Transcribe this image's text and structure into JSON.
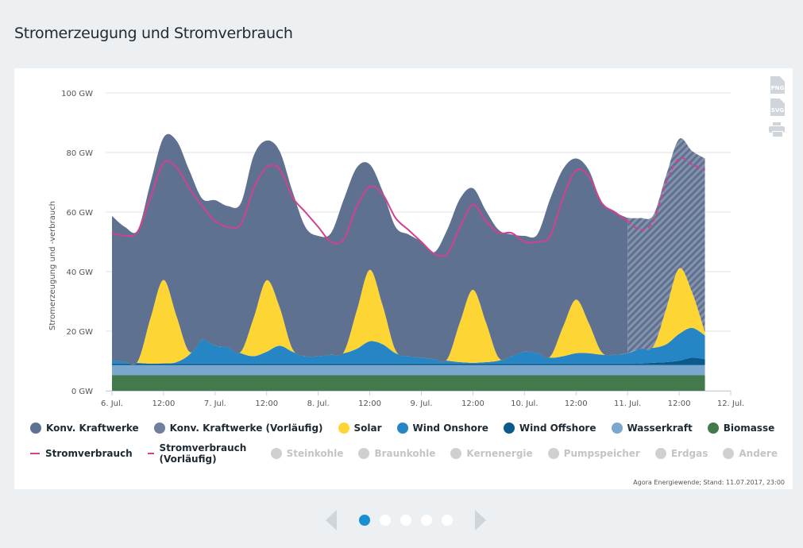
{
  "page_title": "Stromerzeugung und Stromverbrauch",
  "export": {
    "png": "PNG",
    "svg": "SVG",
    "print_icon": "printer-icon"
  },
  "footer": "Agora Energiewende; Stand: 11.07.2017, 23:00",
  "pagination": {
    "pages": 5,
    "active": 1,
    "active_color": "#1a8fd0"
  },
  "chart_data": {
    "type": "area",
    "stacked": true,
    "ylabel": "Stromerzeugung und -verbrauch",
    "ylim": [
      0,
      100
    ],
    "yticks": [
      "0 GW",
      "20 GW",
      "40 GW",
      "60 GW",
      "80 GW",
      "100 GW"
    ],
    "ytick_values": [
      0,
      20,
      40,
      60,
      80,
      100
    ],
    "xlim": [
      "2017-07-06T00:00",
      "2017-07-12T00:00"
    ],
    "xticks": [
      "6. Jul.",
      "12:00",
      "7. Jul.",
      "12:00",
      "8. Jul.",
      "12:00",
      "9. Jul.",
      "12:00",
      "10. Jul.",
      "12:00",
      "11. Jul.",
      "12:00",
      "12. Jul."
    ],
    "grid": true,
    "legend_position": "bottom",
    "preliminary_from": "2017-07-11T00:00",
    "x": [
      "2017-07-06T00:00",
      "2017-07-06T03:00",
      "2017-07-06T06:00",
      "2017-07-06T09:00",
      "2017-07-06T12:00",
      "2017-07-06T15:00",
      "2017-07-06T18:00",
      "2017-07-06T21:00",
      "2017-07-07T00:00",
      "2017-07-07T03:00",
      "2017-07-07T06:00",
      "2017-07-07T09:00",
      "2017-07-07T12:00",
      "2017-07-07T15:00",
      "2017-07-07T18:00",
      "2017-07-07T21:00",
      "2017-07-08T00:00",
      "2017-07-08T03:00",
      "2017-07-08T06:00",
      "2017-07-08T09:00",
      "2017-07-08T12:00",
      "2017-07-08T15:00",
      "2017-07-08T18:00",
      "2017-07-08T21:00",
      "2017-07-09T00:00",
      "2017-07-09T03:00",
      "2017-07-09T06:00",
      "2017-07-09T09:00",
      "2017-07-09T12:00",
      "2017-07-09T15:00",
      "2017-07-09T18:00",
      "2017-07-09T21:00",
      "2017-07-10T00:00",
      "2017-07-10T03:00",
      "2017-07-10T06:00",
      "2017-07-10T09:00",
      "2017-07-10T12:00",
      "2017-07-10T15:00",
      "2017-07-10T18:00",
      "2017-07-10T21:00",
      "2017-07-11T00:00",
      "2017-07-11T03:00",
      "2017-07-11T06:00",
      "2017-07-11T09:00",
      "2017-07-11T12:00",
      "2017-07-11T15:00",
      "2017-07-11T18:00"
    ],
    "series": [
      {
        "name": "Biomasse",
        "color": "#437a4c",
        "values": [
          5.2,
          5.2,
          5.2,
          5.2,
          5.2,
          5.2,
          5.2,
          5.2,
          5.2,
          5.2,
          5.2,
          5.2,
          5.2,
          5.2,
          5.2,
          5.2,
          5.2,
          5.2,
          5.2,
          5.2,
          5.2,
          5.2,
          5.2,
          5.2,
          5.2,
          5.2,
          5.2,
          5.2,
          5.2,
          5.2,
          5.2,
          5.2,
          5.2,
          5.2,
          5.2,
          5.2,
          5.2,
          5.2,
          5.2,
          5.2,
          5.2,
          5.2,
          5.2,
          5.2,
          5.2,
          5.2,
          5.2
        ]
      },
      {
        "name": "Wasserkraft",
        "color": "#7aa7cd",
        "values": [
          3.4,
          3.4,
          3.4,
          3.4,
          3.4,
          3.4,
          3.4,
          3.4,
          3.4,
          3.4,
          3.4,
          3.4,
          3.4,
          3.4,
          3.4,
          3.4,
          3.4,
          3.4,
          3.4,
          3.4,
          3.4,
          3.4,
          3.4,
          3.4,
          3.4,
          3.4,
          3.4,
          3.4,
          3.4,
          3.4,
          3.4,
          3.4,
          3.4,
          3.4,
          3.4,
          3.4,
          3.4,
          3.4,
          3.4,
          3.4,
          3.4,
          3.4,
          3.4,
          3.4,
          3.4,
          3.4,
          3.4
        ]
      },
      {
        "name": "Wind Offshore",
        "color": "#0a5a8c",
        "values": [
          0.5,
          0.5,
          0.5,
          0.5,
          0.5,
          0.5,
          0.5,
          0.5,
          0.5,
          0.5,
          0.5,
          0.5,
          0.5,
          0.5,
          0.5,
          0.5,
          0.5,
          0.5,
          0.5,
          0.5,
          0.5,
          0.5,
          0.5,
          0.5,
          0.5,
          0.5,
          0.5,
          0.5,
          0.5,
          0.5,
          0.5,
          0.5,
          0.5,
          0.5,
          0.5,
          0.5,
          0.5,
          0.5,
          0.5,
          0.5,
          0.5,
          0.5,
          0.8,
          1,
          1.5,
          2.5,
          2
        ]
      },
      {
        "name": "Wind Onshore",
        "color": "#2585c5",
        "values": [
          1.2,
          0.6,
          0.3,
          0,
          0.1,
          0.5,
          3,
          8,
          6,
          5.5,
          3.5,
          2.5,
          4,
          6,
          4,
          2.5,
          2.5,
          3,
          3.5,
          5,
          7.5,
          6.5,
          3.5,
          2.5,
          2,
          1.5,
          1,
          0.5,
          0.3,
          0.5,
          1,
          2.5,
          4,
          3.5,
          2,
          2.5,
          3.5,
          3.5,
          3,
          3,
          3.5,
          5,
          5,
          6,
          9,
          10,
          8
        ]
      },
      {
        "name": "Solar",
        "color": "#fdd535",
        "values": [
          0,
          0,
          0.5,
          15.5,
          28,
          15.5,
          1,
          0,
          0,
          0,
          0.5,
          13,
          24,
          13,
          1,
          0,
          0,
          0,
          0.5,
          13,
          24,
          13,
          1,
          0,
          0,
          0,
          0.5,
          13.5,
          24.5,
          13.5,
          1,
          0,
          0,
          0,
          0.4,
          10,
          18,
          10,
          0.8,
          0,
          0,
          0,
          0.5,
          12,
          22,
          12,
          1
        ]
      },
      {
        "name": "Konv. Kraftwerke",
        "color": "#5f7190",
        "values": [
          48.4,
          45.3,
          44.1,
          45.4,
          47.8,
          58.9,
          60.9,
          47.4,
          48.9,
          47.4,
          49.9,
          54.4,
          46.9,
          52.4,
          52.9,
          43.4,
          40.4,
          40.9,
          51.4,
          47.9,
          35.4,
          38.4,
          41.4,
          40.9,
          38.9,
          35.9,
          43.4,
          41.4,
          34.1,
          37.4,
          42.9,
          40.9,
          38.9,
          39.9,
          53,
          52.9,
          47.4,
          51.4,
          50.1,
          47.9,
          45.4,
          43.9,
          44.1,
          44.9,
          43.4,
          47.4,
          58.4
        ]
      }
    ],
    "consumption": {
      "name": "Stromverbrauch",
      "color": "#d0428f",
      "values": [
        53,
        52,
        53.5,
        65,
        76.5,
        75,
        68,
        62,
        57,
        55,
        56,
        68,
        75,
        74.5,
        65,
        60,
        55,
        50,
        51,
        62,
        68.5,
        66,
        58,
        54,
        50,
        46,
        46,
        55,
        62.5,
        57,
        53,
        53,
        50,
        50,
        52,
        65,
        74,
        72,
        63,
        60,
        57,
        54,
        57,
        70,
        78,
        76,
        74
      ]
    },
    "legend": [
      {
        "label": "Konv. Kraftwerke",
        "type": "dot",
        "color": "#5f7190",
        "active": true
      },
      {
        "label": "Konv. Kraftwerke (Vorläufig)",
        "type": "dot",
        "color": "#6f7f9c",
        "active": true
      },
      {
        "label": "Solar",
        "type": "dot",
        "color": "#fdd535",
        "active": true
      },
      {
        "label": "Wind Onshore",
        "type": "dot",
        "color": "#2585c5",
        "active": true
      },
      {
        "label": "Wind Offshore",
        "type": "dot",
        "color": "#0a5a8c",
        "active": true
      },
      {
        "label": "Wasserkraft",
        "type": "dot",
        "color": "#7aa7cd",
        "active": true
      },
      {
        "label": "Biomasse",
        "type": "dot",
        "color": "#437a4c",
        "active": true
      },
      {
        "label": "Stromverbrauch",
        "type": "line",
        "color": "#d0428f",
        "active": true
      },
      {
        "label": "Stromverbrauch (Vorläufig)",
        "type": "dash",
        "color": "#d0428f",
        "active": true
      },
      {
        "label": "Steinkohle",
        "type": "dot",
        "color": "#d0d0d0",
        "active": false
      },
      {
        "label": "Braunkohle",
        "type": "dot",
        "color": "#d0d0d0",
        "active": false
      },
      {
        "label": "Kernenergie",
        "type": "dot",
        "color": "#d0d0d0",
        "active": false
      },
      {
        "label": "Pumpspeicher",
        "type": "dot",
        "color": "#d0d0d0",
        "active": false
      },
      {
        "label": "Erdgas",
        "type": "dot",
        "color": "#d0d0d0",
        "active": false
      },
      {
        "label": "Andere",
        "type": "dot",
        "color": "#d0d0d0",
        "active": false
      }
    ]
  }
}
